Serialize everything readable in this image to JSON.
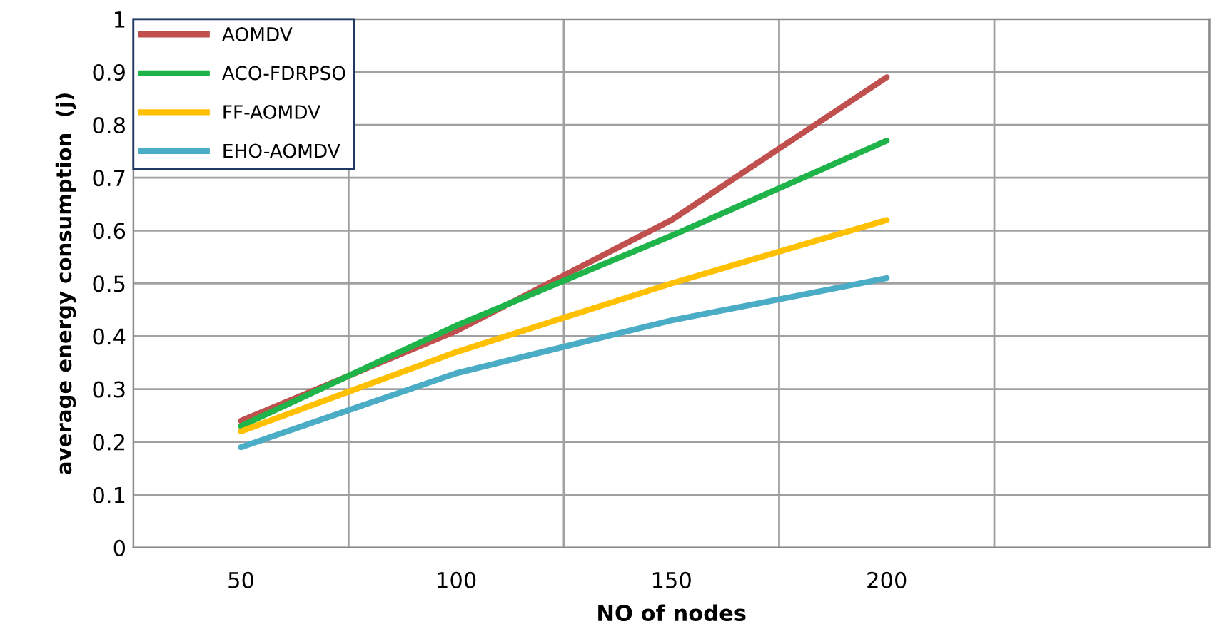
{
  "chart_data": {
    "type": "line",
    "xlabel": "NO of nodes",
    "ylabel": "average energy consumption  (j)",
    "categories": [
      "50",
      "100",
      "150",
      "200",
      null
    ],
    "series": [
      {
        "name": "AOMDV",
        "color": "#c0504d",
        "values": [
          0.24,
          0.41,
          0.62,
          0.89,
          null
        ]
      },
      {
        "name": "ACO-FDRPSO",
        "color": "#1eb44a",
        "values": [
          0.23,
          0.42,
          0.59,
          0.77,
          null
        ]
      },
      {
        "name": "FF-AOMDV",
        "color": "#ffc000",
        "values": [
          0.22,
          0.37,
          0.5,
          0.62,
          null
        ]
      },
      {
        "name": "EHO-AOMDV",
        "color": "#4bacc6",
        "values": [
          0.19,
          0.33,
          0.43,
          0.51,
          null
        ]
      }
    ],
    "ylim": [
      0,
      1
    ],
    "yticks": [
      0,
      0.1,
      0.2,
      0.3,
      0.4,
      0.5,
      0.6,
      0.7,
      0.8,
      0.9,
      1
    ],
    "grid": true,
    "legend": "top left",
    "marker": "none",
    "line_style": "solid"
  }
}
